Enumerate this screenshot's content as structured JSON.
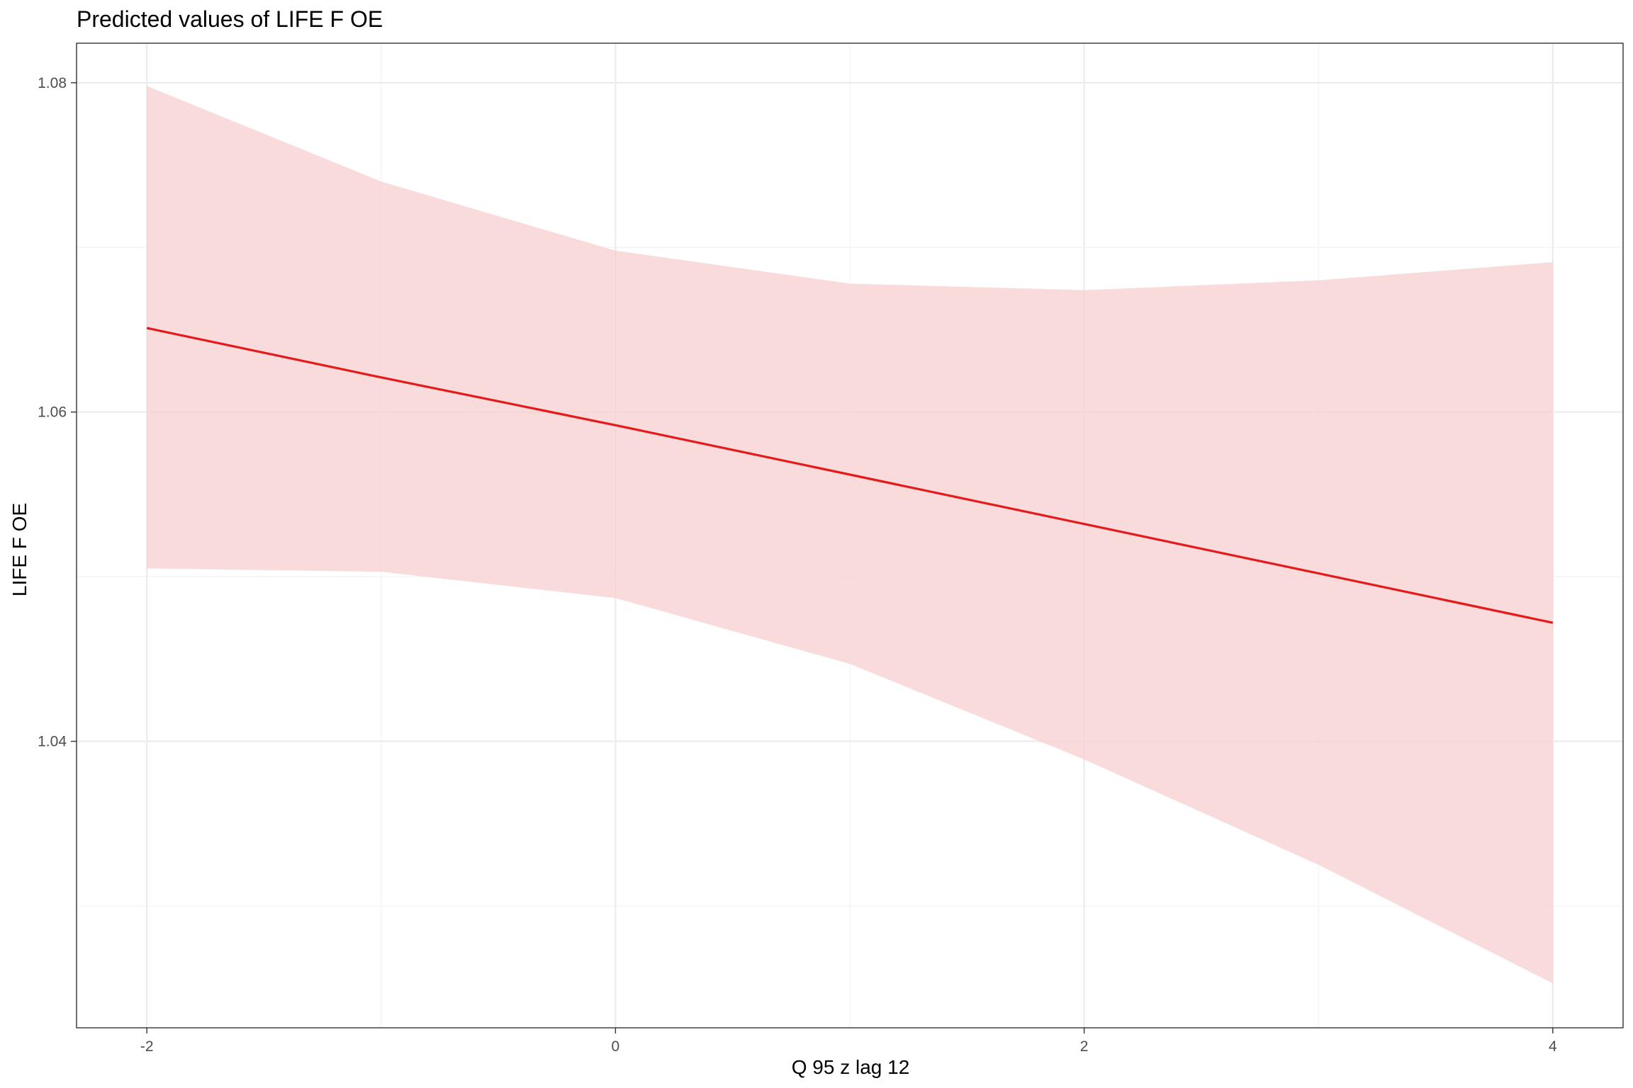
{
  "chart_data": {
    "type": "line",
    "title": "Predicted values of LIFE F OE",
    "xlabel": "Q 95 z lag 12",
    "ylabel": "LIFE F OE",
    "x_ticks": [
      -2,
      0,
      2,
      4
    ],
    "x_tick_labels": [
      "-2",
      "0",
      "2",
      "4"
    ],
    "y_ticks": [
      1.04,
      1.06,
      1.08
    ],
    "y_tick_labels": [
      "1.04",
      "1.06",
      "1.08"
    ],
    "xlim": [
      -2.3,
      4.3
    ],
    "ylim": [
      1.0226,
      1.0824
    ],
    "grid": true,
    "legend": "none",
    "series": [
      {
        "x": [
          -2,
          -1,
          0,
          1,
          2,
          3,
          4
        ],
        "y": [
          1.0651,
          1.0621,
          1.0592,
          1.0562,
          1.0532,
          1.0502,
          1.0472
        ],
        "ci_low": [
          1.0505,
          1.0503,
          1.0487,
          1.0447,
          1.0389,
          1.0325,
          1.0253
        ],
        "ci_high": [
          1.0798,
          1.074,
          1.0698,
          1.0678,
          1.0674,
          1.068,
          1.0691
        ],
        "color": "#e41a1c",
        "ribbon_color": "#f8cdcf"
      }
    ]
  }
}
